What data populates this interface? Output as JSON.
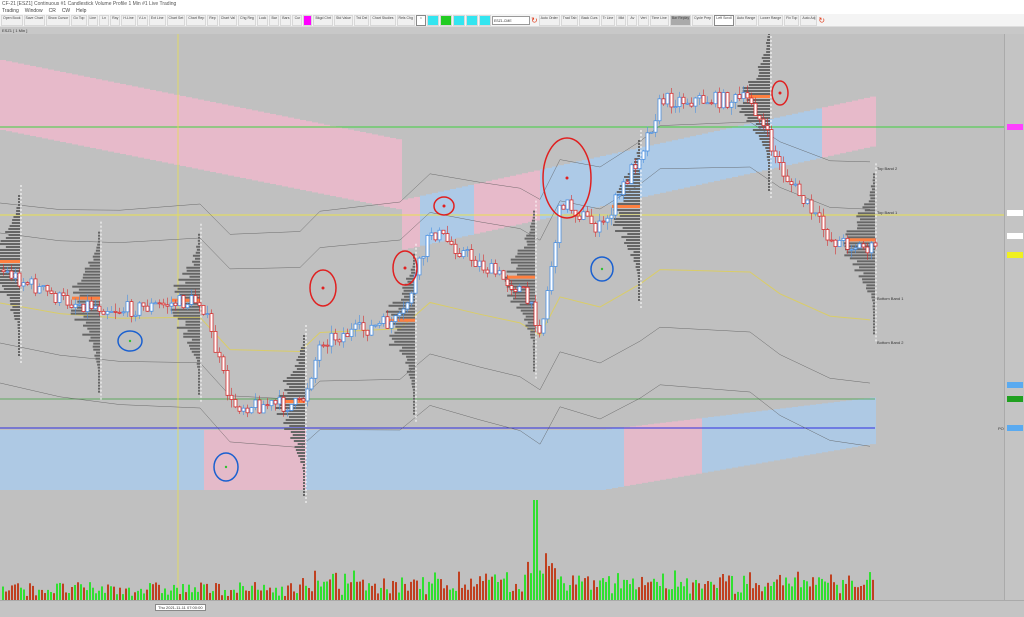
{
  "window": {
    "title": "CF-21  [ESZ1] Continuous #1  Candlestick  Volume Profile  1 Min  #1  Live  Trading"
  },
  "menu": {
    "items": [
      "Trading",
      "Window",
      "CR",
      "CW",
      "Help"
    ]
  },
  "toolbar": {
    "buttons": [
      "Open Book",
      "Save Chart",
      "Show Cursor",
      "Go Top",
      "Line",
      "Ln",
      "Ray",
      "H-Line",
      "V-Ln",
      "Ext Line",
      "Chart Set",
      "Chart Rep",
      "Rep",
      "Chart Val",
      "Chg Reg",
      "Lock",
      "Bar",
      "Bars",
      "Cur",
      "",
      "Bkgd Chrt",
      "Std Value",
      "Trd Del",
      "Chart Studies",
      "Rels Chg"
    ],
    "cyan_buttons": [
      "",
      "",
      "",
      "",
      ""
    ],
    "symbol_value": "ESZ1-CME",
    "buttons2": [
      "Auto Order",
      "Trad Tab",
      "Back Curs",
      "Tr Line",
      "Mkt",
      "Av",
      "Vert",
      "Time Line"
    ],
    "selected_button": "Bar Replay",
    "buttons3": [
      "Cycle Prep",
      "Left Scroll",
      "Auto Range",
      "Lower Range",
      "Fix Top",
      "Auto Adj"
    ]
  },
  "chart_header": "ESZ1 [ 1 Min ]",
  "study_labels": {
    "top_band_2": "Top Band 2",
    "top_band_1": "Top Band 1",
    "bottom_band_1": "Bottom Band 1",
    "bottom_band_2": "Bottom Band 2",
    "poc": "POC"
  },
  "cursor_time": "Thu 2021-11-11  07:00:00",
  "colors": {
    "background": "#c0c0c0",
    "up_candle": "#4a90e2",
    "down_candle": "#d63030",
    "band_pink": "#f0b8cc",
    "band_blue": "#a8ccf0",
    "profile": "#666666",
    "poc": "#ff8040",
    "vwap": "#e8e060",
    "annotation_red": "#e02020",
    "annotation_blue": "#1a60d0",
    "volume_up": "#30e030",
    "volume_down": "#c04020"
  }
}
